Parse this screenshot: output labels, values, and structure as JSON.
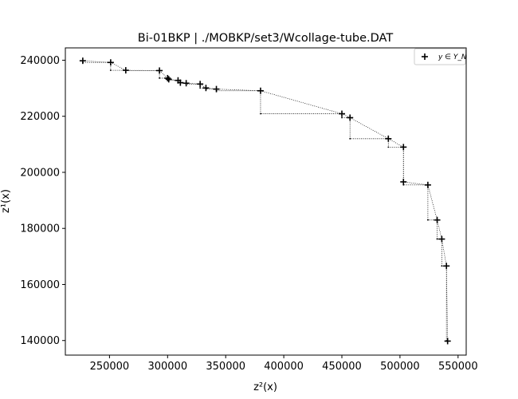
{
  "chart_data": {
    "type": "scatter",
    "title": "Bi-01BKP | ./MOBKP/set3/Wcollage-tube.DAT",
    "xlabel": "z²(x)",
    "ylabel": "z¹(x)",
    "xlim": [
      212000,
      557000
    ],
    "ylim": [
      134800,
      244400
    ],
    "xticks": [
      250000,
      300000,
      350000,
      400000,
      450000,
      500000,
      550000
    ],
    "xtick_labels": [
      "250000",
      "300000",
      "350000",
      "400000",
      "450000",
      "500000",
      "550000"
    ],
    "yticks": [
      140000,
      160000,
      180000,
      200000,
      220000,
      240000
    ],
    "ytick_labels": [
      "140000",
      "160000",
      "180000",
      "200000",
      "220000",
      "240000"
    ],
    "grid": false,
    "legend": {
      "placement": "top-right",
      "entries": [
        {
          "marker": "plus",
          "label": "y ∈ Y_N"
        }
      ]
    },
    "series": [
      {
        "name": "y ∈ Y_N",
        "marker": "plus",
        "color": "#000000",
        "x": [
          227000,
          251000,
          264000,
          293000,
          300000,
          301000,
          309000,
          311000,
          316000,
          328000,
          333000,
          342000,
          380000,
          450000,
          457000,
          490000,
          503000,
          503000,
          524000,
          532000,
          536000,
          540000,
          541000
        ],
        "y": [
          239800,
          239200,
          236400,
          236300,
          233600,
          233200,
          232800,
          232000,
          231800,
          231500,
          230100,
          229700,
          229100,
          220900,
          219500,
          212000,
          209000,
          196600,
          195500,
          183000,
          176200,
          166600,
          139800
        ]
      }
    ],
    "staircase": {
      "style": "dotted",
      "corners_x": [
        227000,
        251000,
        264000,
        293000,
        300000,
        301000,
        309000,
        311000,
        316000,
        328000,
        333000,
        342000,
        380000,
        450000,
        457000,
        490000,
        503000,
        503000,
        524000,
        532000,
        536000,
        540000
      ],
      "corners_y": [
        239200,
        236400,
        236300,
        233600,
        233200,
        232800,
        232000,
        231800,
        231500,
        230100,
        229700,
        229100,
        220900,
        219500,
        212000,
        209000,
        196600,
        195500,
        183000,
        176200,
        166600,
        139800
      ]
    }
  }
}
